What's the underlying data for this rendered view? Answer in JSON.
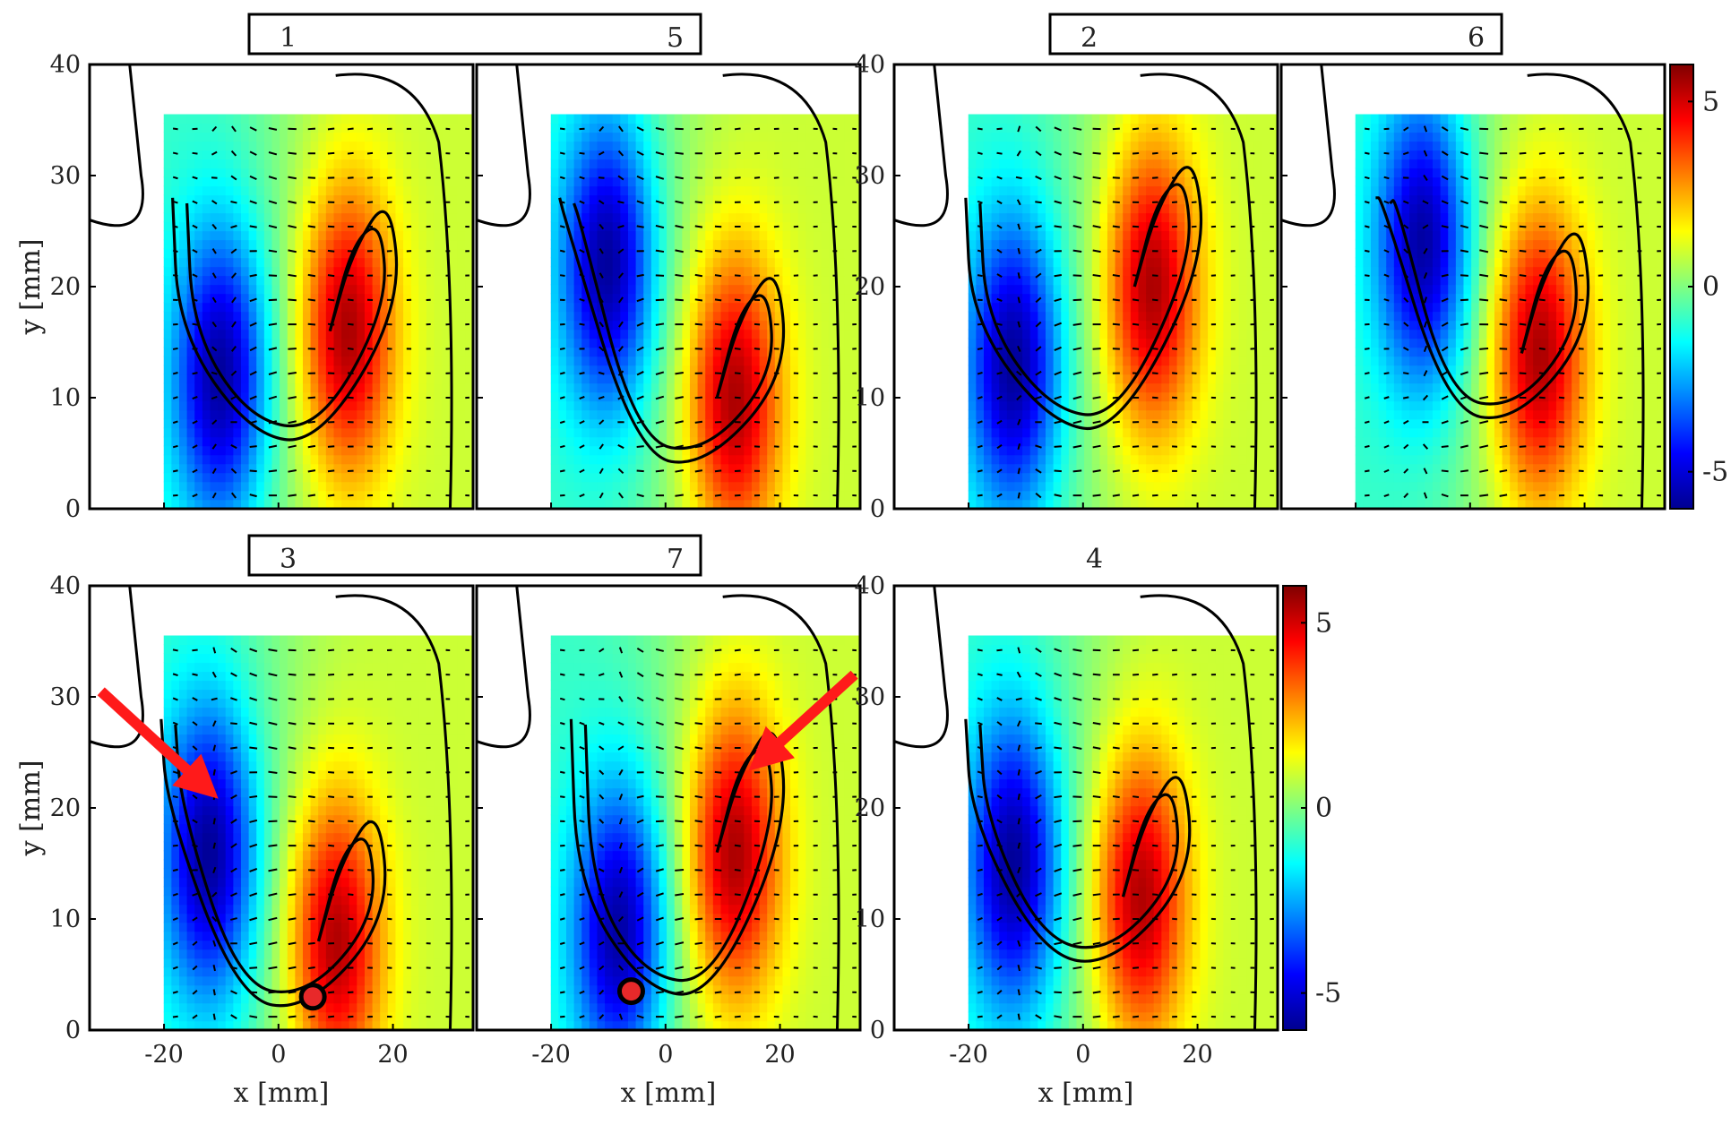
{
  "chart_data": {
    "type": "heatmap",
    "description_axes": {
      "xlabel": "x [mm]",
      "ylabel": "y [mm]",
      "xlim": [
        -33,
        34
      ],
      "ylim": [
        0,
        40
      ],
      "xticks": [
        -20,
        0,
        20
      ],
      "yticks": [
        0,
        10,
        20,
        30,
        40
      ],
      "data_region": {
        "x": [
          -20,
          34
        ],
        "y": [
          0,
          35.5
        ]
      }
    },
    "colorbar": {
      "range": [
        -6,
        6
      ],
      "ticks": [
        5,
        0,
        -5
      ],
      "colors": [
        "#00008f",
        "#0000ff",
        "#0080ff",
        "#00ffff",
        "#80ff80",
        "#ffff00",
        "#ff8000",
        "#ff0000",
        "#800000"
      ]
    },
    "groups": [
      {
        "labels": [
          "1",
          "5"
        ],
        "boxed": true
      },
      {
        "labels": [
          "2",
          "6"
        ],
        "boxed": true
      },
      {
        "labels": [
          "3",
          "7"
        ],
        "boxed": true
      },
      {
        "labels": [
          "4"
        ],
        "boxed": false
      }
    ],
    "panels": [
      {
        "id": "1",
        "neg": {
          "x": -10,
          "y": 12
        },
        "pos": {
          "x": 12,
          "y": 16
        },
        "marker": null,
        "arrow": null
      },
      {
        "id": "5",
        "neg": {
          "x": -10,
          "y": 22
        },
        "pos": {
          "x": 12,
          "y": 10
        },
        "marker": null,
        "arrow": null
      },
      {
        "id": "2",
        "neg": {
          "x": -12,
          "y": 13
        },
        "pos": {
          "x": 12,
          "y": 20
        },
        "marker": null,
        "arrow": null
      },
      {
        "id": "6",
        "neg": {
          "x": -8,
          "y": 24
        },
        "pos": {
          "x": 12,
          "y": 14
        },
        "marker": null,
        "arrow": null
      },
      {
        "id": "3",
        "neg": {
          "x": -12,
          "y": 16
        },
        "pos": {
          "x": 10,
          "y": 8
        },
        "marker": {
          "x": 6,
          "y": 3
        },
        "arrow": {
          "from": {
            "x": -31,
            "y": 30.5
          },
          "to": {
            "x": -13,
            "y": 22
          }
        }
      },
      {
        "id": "7",
        "neg": {
          "x": -8,
          "y": 9
        },
        "pos": {
          "x": 12,
          "y": 16
        },
        "marker": {
          "x": -6,
          "y": 3.5
        },
        "arrow": {
          "from": {
            "x": 33,
            "y": 32
          },
          "to": {
            "x": 17,
            "y": 24.5
          }
        }
      },
      {
        "id": "4",
        "neg": {
          "x": -12,
          "y": 15
        },
        "pos": {
          "x": 10,
          "y": 12
        },
        "marker": null,
        "arrow": null
      }
    ]
  }
}
